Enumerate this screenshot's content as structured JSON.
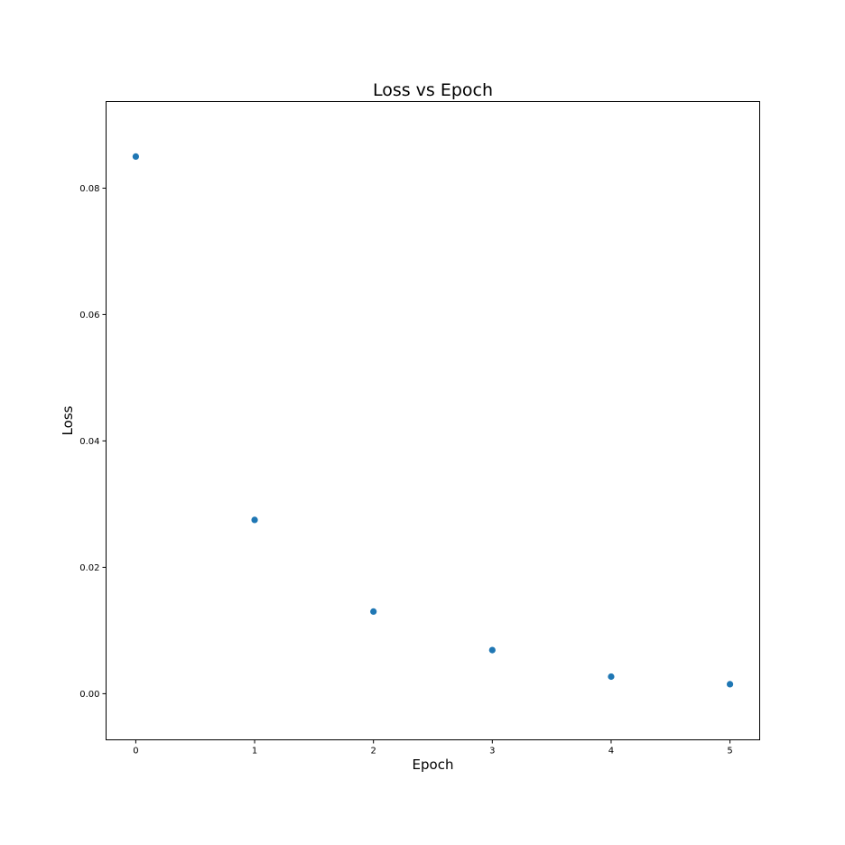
{
  "chart_data": {
    "type": "scatter",
    "title": "Loss vs Epoch",
    "xlabel": "Epoch",
    "ylabel": "Loss",
    "x": [
      0,
      1,
      2,
      3,
      4,
      5
    ],
    "y": [
      0.085,
      0.0275,
      0.013,
      0.0069,
      0.0027,
      0.0015
    ],
    "xlim": [
      -0.25,
      5.25
    ],
    "ylim": [
      -0.0073,
      0.0937
    ],
    "xticks": [
      0,
      1,
      2,
      3,
      4,
      5
    ],
    "xtick_labels": [
      "0",
      "1",
      "2",
      "3",
      "4",
      "5"
    ],
    "yticks": [
      0.0,
      0.02,
      0.04,
      0.06,
      0.08
    ],
    "ytick_labels": [
      "0.00",
      "0.02",
      "0.04",
      "0.06",
      "0.08"
    ],
    "grid": false,
    "marker_color": "#1f77b4"
  }
}
